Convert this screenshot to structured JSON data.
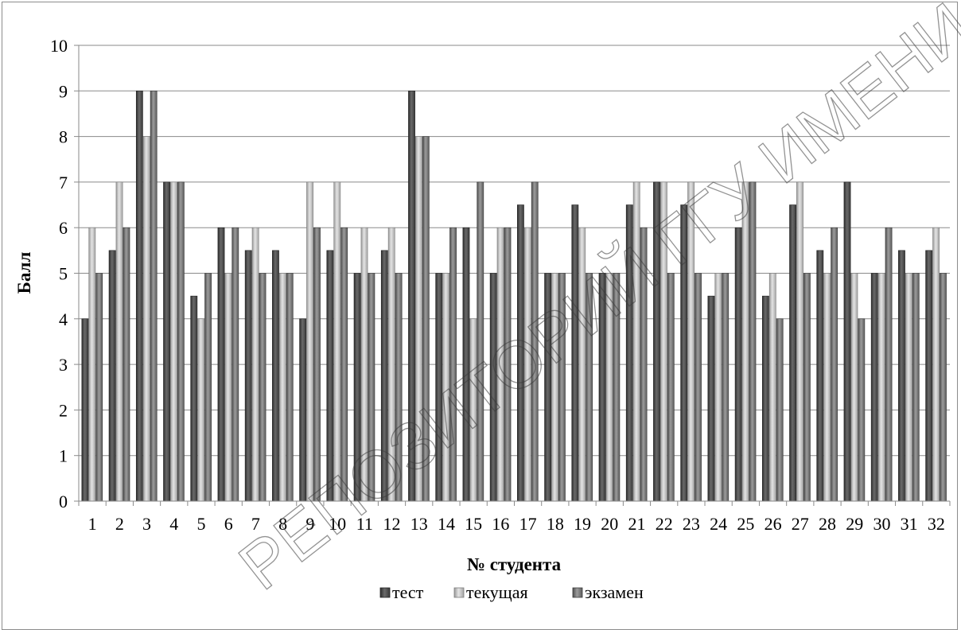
{
  "chart_data": {
    "type": "bar",
    "xlabel": "№ студента",
    "ylabel": "Балл",
    "ylim": [
      0,
      10
    ],
    "yticks": [
      "0",
      "1",
      "2",
      "3",
      "4",
      "5",
      "6",
      "7",
      "8",
      "9",
      "10"
    ],
    "grid": true,
    "legend_position": "bottom",
    "categories": [
      "1",
      "2",
      "3",
      "4",
      "5",
      "6",
      "7",
      "8",
      "9",
      "10",
      "11",
      "12",
      "13",
      "14",
      "15",
      "16",
      "17",
      "18",
      "19",
      "20",
      "21",
      "22",
      "23",
      "24",
      "25",
      "26",
      "27",
      "28",
      "29",
      "30",
      "31",
      "32"
    ],
    "series": [
      {
        "name": "тест",
        "color": "#555555",
        "values": [
          4,
          5.5,
          9,
          7,
          4.5,
          6,
          5.5,
          5.5,
          4,
          5.5,
          5,
          5.5,
          9,
          5,
          6,
          5,
          6.5,
          5,
          6.5,
          5,
          6.5,
          7,
          6.5,
          4.5,
          6,
          4.5,
          6.5,
          5.5,
          7,
          5,
          5.5,
          5.5
        ]
      },
      {
        "name": "текущая",
        "color": "#bdbdbd",
        "values": [
          6,
          7,
          8,
          7,
          4,
          5,
          6,
          5,
          7,
          7,
          6,
          6,
          8,
          5,
          4,
          6,
          6,
          5,
          6,
          5,
          7,
          7,
          7,
          5,
          7,
          5,
          7,
          5,
          5,
          5,
          5,
          6
        ]
      },
      {
        "name": "экзамен",
        "color": "#7a7a7a",
        "values": [
          5,
          6,
          9,
          7,
          5,
          6,
          5,
          5,
          6,
          6,
          5,
          5,
          8,
          6,
          7,
          6,
          7,
          5,
          5,
          5,
          6,
          5,
          5,
          5,
          7,
          4,
          5,
          6,
          4,
          6,
          5,
          5
        ]
      }
    ]
  },
  "watermark": "РЕПОЗИТОРИЙ ГГУ ИМЕНИ Ф. СКОРИНЫ"
}
